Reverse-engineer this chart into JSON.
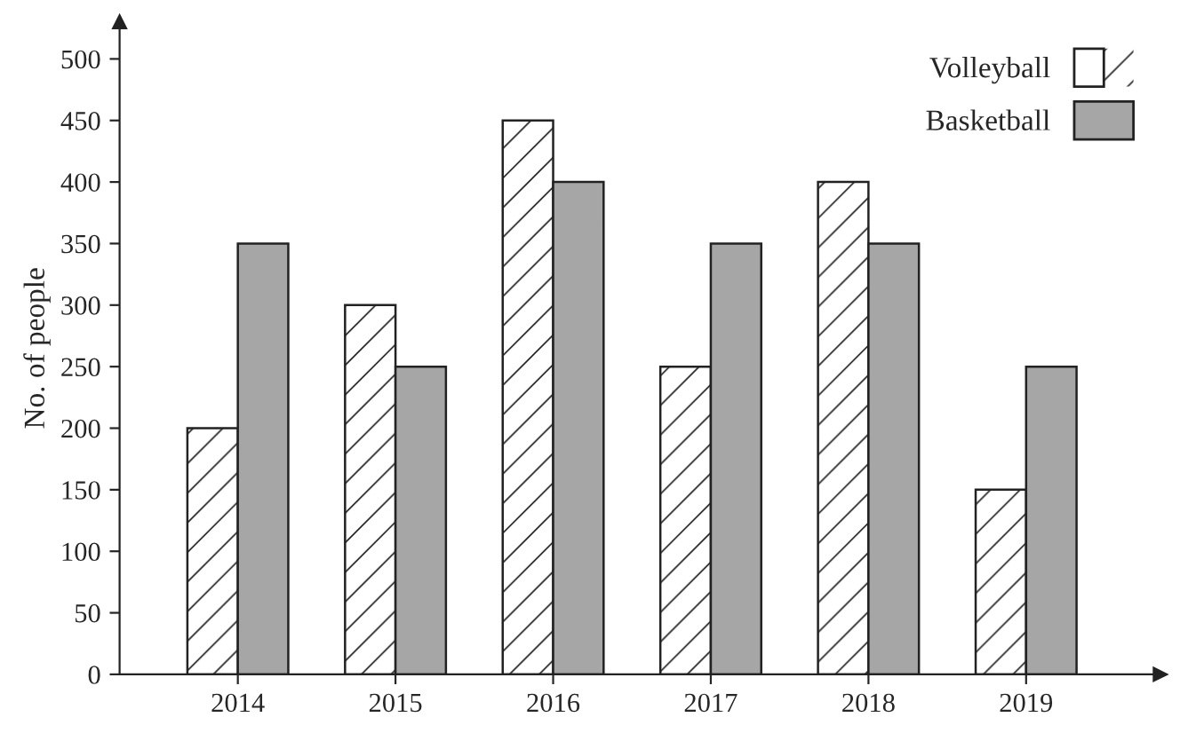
{
  "chart_data": {
    "type": "bar",
    "ylabel": "No. of people",
    "categories": [
      "2014",
      "2015",
      "2016",
      "2017",
      "2018",
      "2019"
    ],
    "series": [
      {
        "name": "Volleyball",
        "color": "#ffffff",
        "values": [
          200,
          300,
          450,
          250,
          400,
          150
        ]
      },
      {
        "name": "Basketball",
        "color": "#a6a6a6",
        "values": [
          350,
          250,
          400,
          350,
          350,
          250
        ]
      }
    ],
    "ylim": [
      0,
      530
    ],
    "yticks": [
      0,
      50,
      100,
      150,
      200,
      250,
      300,
      350,
      400,
      450,
      500
    ],
    "grid": false,
    "legend": "top right"
  }
}
